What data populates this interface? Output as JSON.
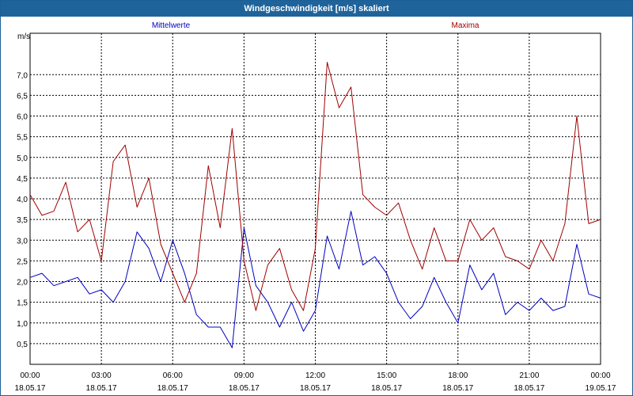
{
  "window": {
    "title": "Windgeschwindigkeit [m/s] skaliert"
  },
  "chart_data": {
    "type": "line",
    "title": "Windgeschwindigkeit [m/s] skaliert",
    "ylabel": "m/s",
    "ylim": [
      0,
      8
    ],
    "xlim": [
      0,
      24
    ],
    "grid": true,
    "y_ticks": [
      "0,5",
      "1,0",
      "1,5",
      "2,0",
      "2,5",
      "3,0",
      "3,5",
      "4,0",
      "4,5",
      "5,0",
      "5,5",
      "6,0",
      "6,5",
      "7,0"
    ],
    "x_ticks": [
      {
        "time": "00:00",
        "date": "18.05.17"
      },
      {
        "time": "03:00",
        "date": "18.05.17"
      },
      {
        "time": "06:00",
        "date": "18.05.17"
      },
      {
        "time": "09:00",
        "date": "18.05.17"
      },
      {
        "time": "12:00",
        "date": "18.05.17"
      },
      {
        "time": "15:00",
        "date": "18.05.17"
      },
      {
        "time": "18:00",
        "date": "18.05.17"
      },
      {
        "time": "21:00",
        "date": "18.05.17"
      },
      {
        "time": "00:00",
        "date": "19.05.17"
      }
    ],
    "x_hours": [
      0,
      0.5,
      1,
      1.5,
      2,
      2.5,
      3,
      3.5,
      4,
      4.5,
      5,
      5.5,
      6,
      6.5,
      7,
      7.5,
      8,
      8.5,
      9,
      9.5,
      10,
      10.5,
      11,
      11.5,
      12,
      12.5,
      13,
      13.5,
      14,
      14.5,
      15,
      15.5,
      16,
      16.5,
      17,
      17.5,
      18,
      18.5,
      19,
      19.5,
      20,
      20.5,
      21,
      21.5,
      22,
      22.5,
      23,
      23.5,
      24
    ],
    "series": [
      {
        "name": "Mittelwerte",
        "color": "#0000c0",
        "values": [
          2.1,
          2.2,
          1.9,
          2.0,
          2.1,
          1.7,
          1.8,
          1.5,
          2.0,
          3.2,
          2.8,
          2.0,
          3.0,
          2.2,
          1.2,
          0.9,
          0.9,
          0.4,
          3.3,
          1.9,
          1.5,
          0.9,
          1.5,
          0.8,
          1.3,
          3.1,
          2.3,
          3.7,
          2.4,
          2.6,
          2.2,
          1.5,
          1.1,
          1.4,
          2.1,
          1.5,
          1.0,
          2.4,
          1.8,
          2.2,
          1.2,
          1.5,
          1.3,
          1.6,
          1.3,
          1.4,
          2.9,
          1.7,
          1.6
        ]
      },
      {
        "name": "Maxima",
        "color": "#a00000",
        "values": [
          4.1,
          3.6,
          3.7,
          4.4,
          3.2,
          3.5,
          2.5,
          4.9,
          5.3,
          3.8,
          4.5,
          2.9,
          2.2,
          1.5,
          2.2,
          4.8,
          3.3,
          5.7,
          2.5,
          1.3,
          2.4,
          2.8,
          1.8,
          1.3,
          2.8,
          7.3,
          6.2,
          6.7,
          4.1,
          3.8,
          3.6,
          3.9,
          3.0,
          2.3,
          3.3,
          2.5,
          2.5,
          3.5,
          3.0,
          3.3,
          2.6,
          2.5,
          2.3,
          3.0,
          2.5,
          3.4,
          6.0,
          3.4,
          3.5
        ]
      }
    ]
  }
}
